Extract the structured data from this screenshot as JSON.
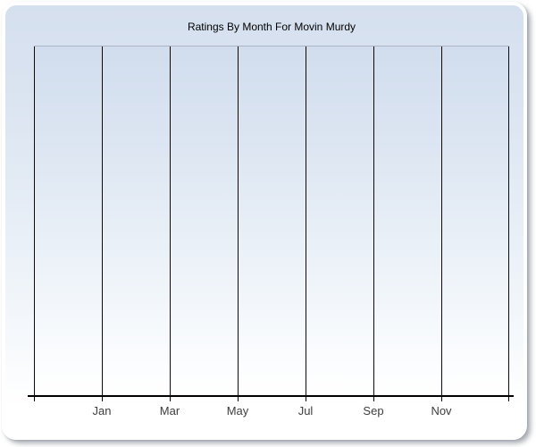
{
  "chart_data": {
    "type": "bar",
    "title": "Ratings By Month For Movin Murdy",
    "x_tick_labels": [
      "Jan",
      "Mar",
      "May",
      "Jul",
      "Sep",
      "Nov"
    ],
    "y_tick_labels": [],
    "series": [],
    "grid": "vertical gridlines only, 8 lines including plot edges",
    "legend": "none",
    "colors": {
      "panel_gradient_top": "#d5e0ef",
      "panel_gradient_bottom": "#ffffff",
      "plot_gradient_top": "#d1ddee",
      "plot_gradient_bottom": "#ffffff",
      "plot_top_border": "#a9b3c4",
      "gridline": "#0c0c10",
      "axis": "#000000",
      "tick_label": "#3d3d3d",
      "title": "#000000",
      "panel_frame": "#ffffff",
      "shadow": "#7b818a"
    }
  }
}
